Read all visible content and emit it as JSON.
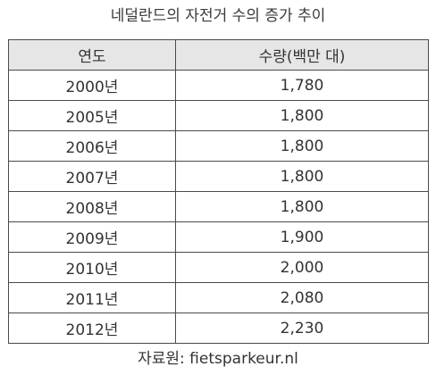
{
  "title": "네덜란드의 자전거 수의 증가 추이",
  "table": {
    "headers": [
      "연도",
      "수량(백만 대)"
    ],
    "rows": [
      [
        "2000년",
        "1,780"
      ],
      [
        "2005년",
        "1,800"
      ],
      [
        "2006년",
        "1,800"
      ],
      [
        "2007년",
        "1,800"
      ],
      [
        "2008년",
        "1,800"
      ],
      [
        "2009년",
        "1,900"
      ],
      [
        "2010년",
        "2,000"
      ],
      [
        "2011년",
        "2,080"
      ],
      [
        "2012년",
        "2,230"
      ]
    ]
  },
  "source": "자료원: fietsparkeur.nl",
  "colors": {
    "header_bg": "#e6e6e6",
    "border": "#4a4a4a",
    "text": "#333333"
  }
}
